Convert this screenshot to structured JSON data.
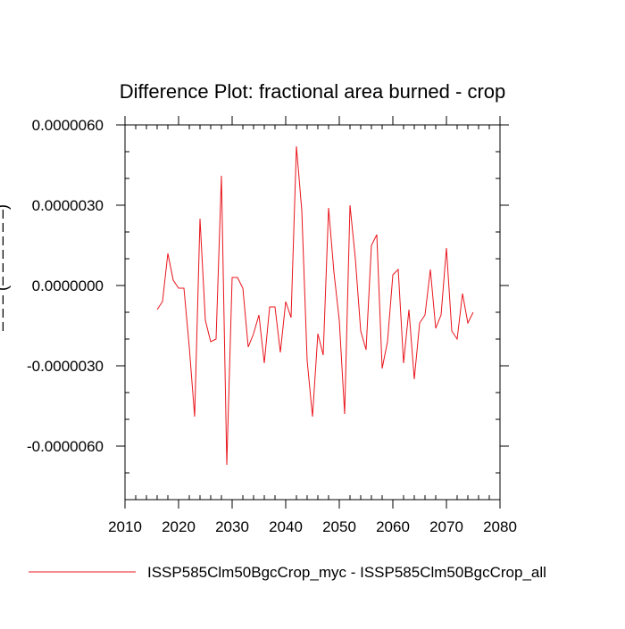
{
  "chart_data": {
    "type": "line",
    "title": "Difference Plot: fractional area burned - crop",
    "xlabel": "",
    "ylabel": "– – – (– – – – – –)",
    "xlim": [
      2010,
      2080
    ],
    "ylim": [
      -8e-06,
      6e-06
    ],
    "x_ticks": [
      2010,
      2020,
      2030,
      2040,
      2050,
      2060,
      2070,
      2080
    ],
    "x_tick_labels": [
      "2010",
      "2020",
      "2030",
      "2040",
      "2050",
      "2060",
      "2070",
      "2080"
    ],
    "y_ticks": [
      -6e-06,
      -3e-06,
      0,
      3e-06,
      6e-06
    ],
    "y_tick_labels": [
      "-0.0000060",
      "-0.0000030",
      "0.0000000",
      "0.0000030",
      "0.0000060"
    ],
    "grid": false,
    "legend_position": "bottom",
    "series": [
      {
        "name": "ISSP585Clm50BgcCrop_myc - ISSP585Clm50BgcCrop_all",
        "color": "#e8141b",
        "x": [
          2016,
          2017,
          2018,
          2019,
          2020,
          2021,
          2022,
          2023,
          2024,
          2025,
          2026,
          2027,
          2028,
          2029,
          2030,
          2031,
          2032,
          2033,
          2034,
          2035,
          2036,
          2037,
          2038,
          2039,
          2040,
          2041,
          2042,
          2043,
          2044,
          2045,
          2046,
          2047,
          2048,
          2049,
          2050,
          2051,
          2052,
          2053,
          2054,
          2055,
          2056,
          2057,
          2058,
          2059,
          2060,
          2061,
          2062,
          2063,
          2064,
          2065,
          2066,
          2067,
          2068,
          2069,
          2070,
          2071,
          2072,
          2073,
          2074,
          2075
        ],
        "values": [
          -9e-07,
          -6e-07,
          1.2e-06,
          2e-07,
          -1e-07,
          -1e-07,
          -2.3e-06,
          -4.9e-06,
          2.5e-06,
          -1.3e-06,
          -2.1e-06,
          -2e-06,
          4.1e-06,
          -6.7e-06,
          3e-07,
          3e-07,
          -1e-07,
          -2.3e-06,
          -1.8e-06,
          -1.1e-06,
          -2.9e-06,
          -8e-07,
          -8e-07,
          -2.5e-06,
          -6e-07,
          -1.2e-06,
          5.2e-06,
          2.8e-06,
          -2.8e-06,
          -4.9e-06,
          -1.8e-06,
          -2.6e-06,
          2.9e-06,
          5e-07,
          -1.3e-06,
          -4.8e-06,
          3e-06,
          1e-06,
          -1.7e-06,
          -2.4e-06,
          1.5e-06,
          1.9e-06,
          -3.1e-06,
          -2.1e-06,
          4e-07,
          6e-07,
          -2.9e-06,
          -9e-07,
          -3.5e-06,
          -1.4e-06,
          -1.1e-06,
          6e-07,
          -1.6e-06,
          -1.1e-06,
          1.4e-06,
          -1.7e-06,
          -2e-06,
          -3e-07,
          -1.4e-06,
          -1e-06
        ]
      }
    ]
  }
}
